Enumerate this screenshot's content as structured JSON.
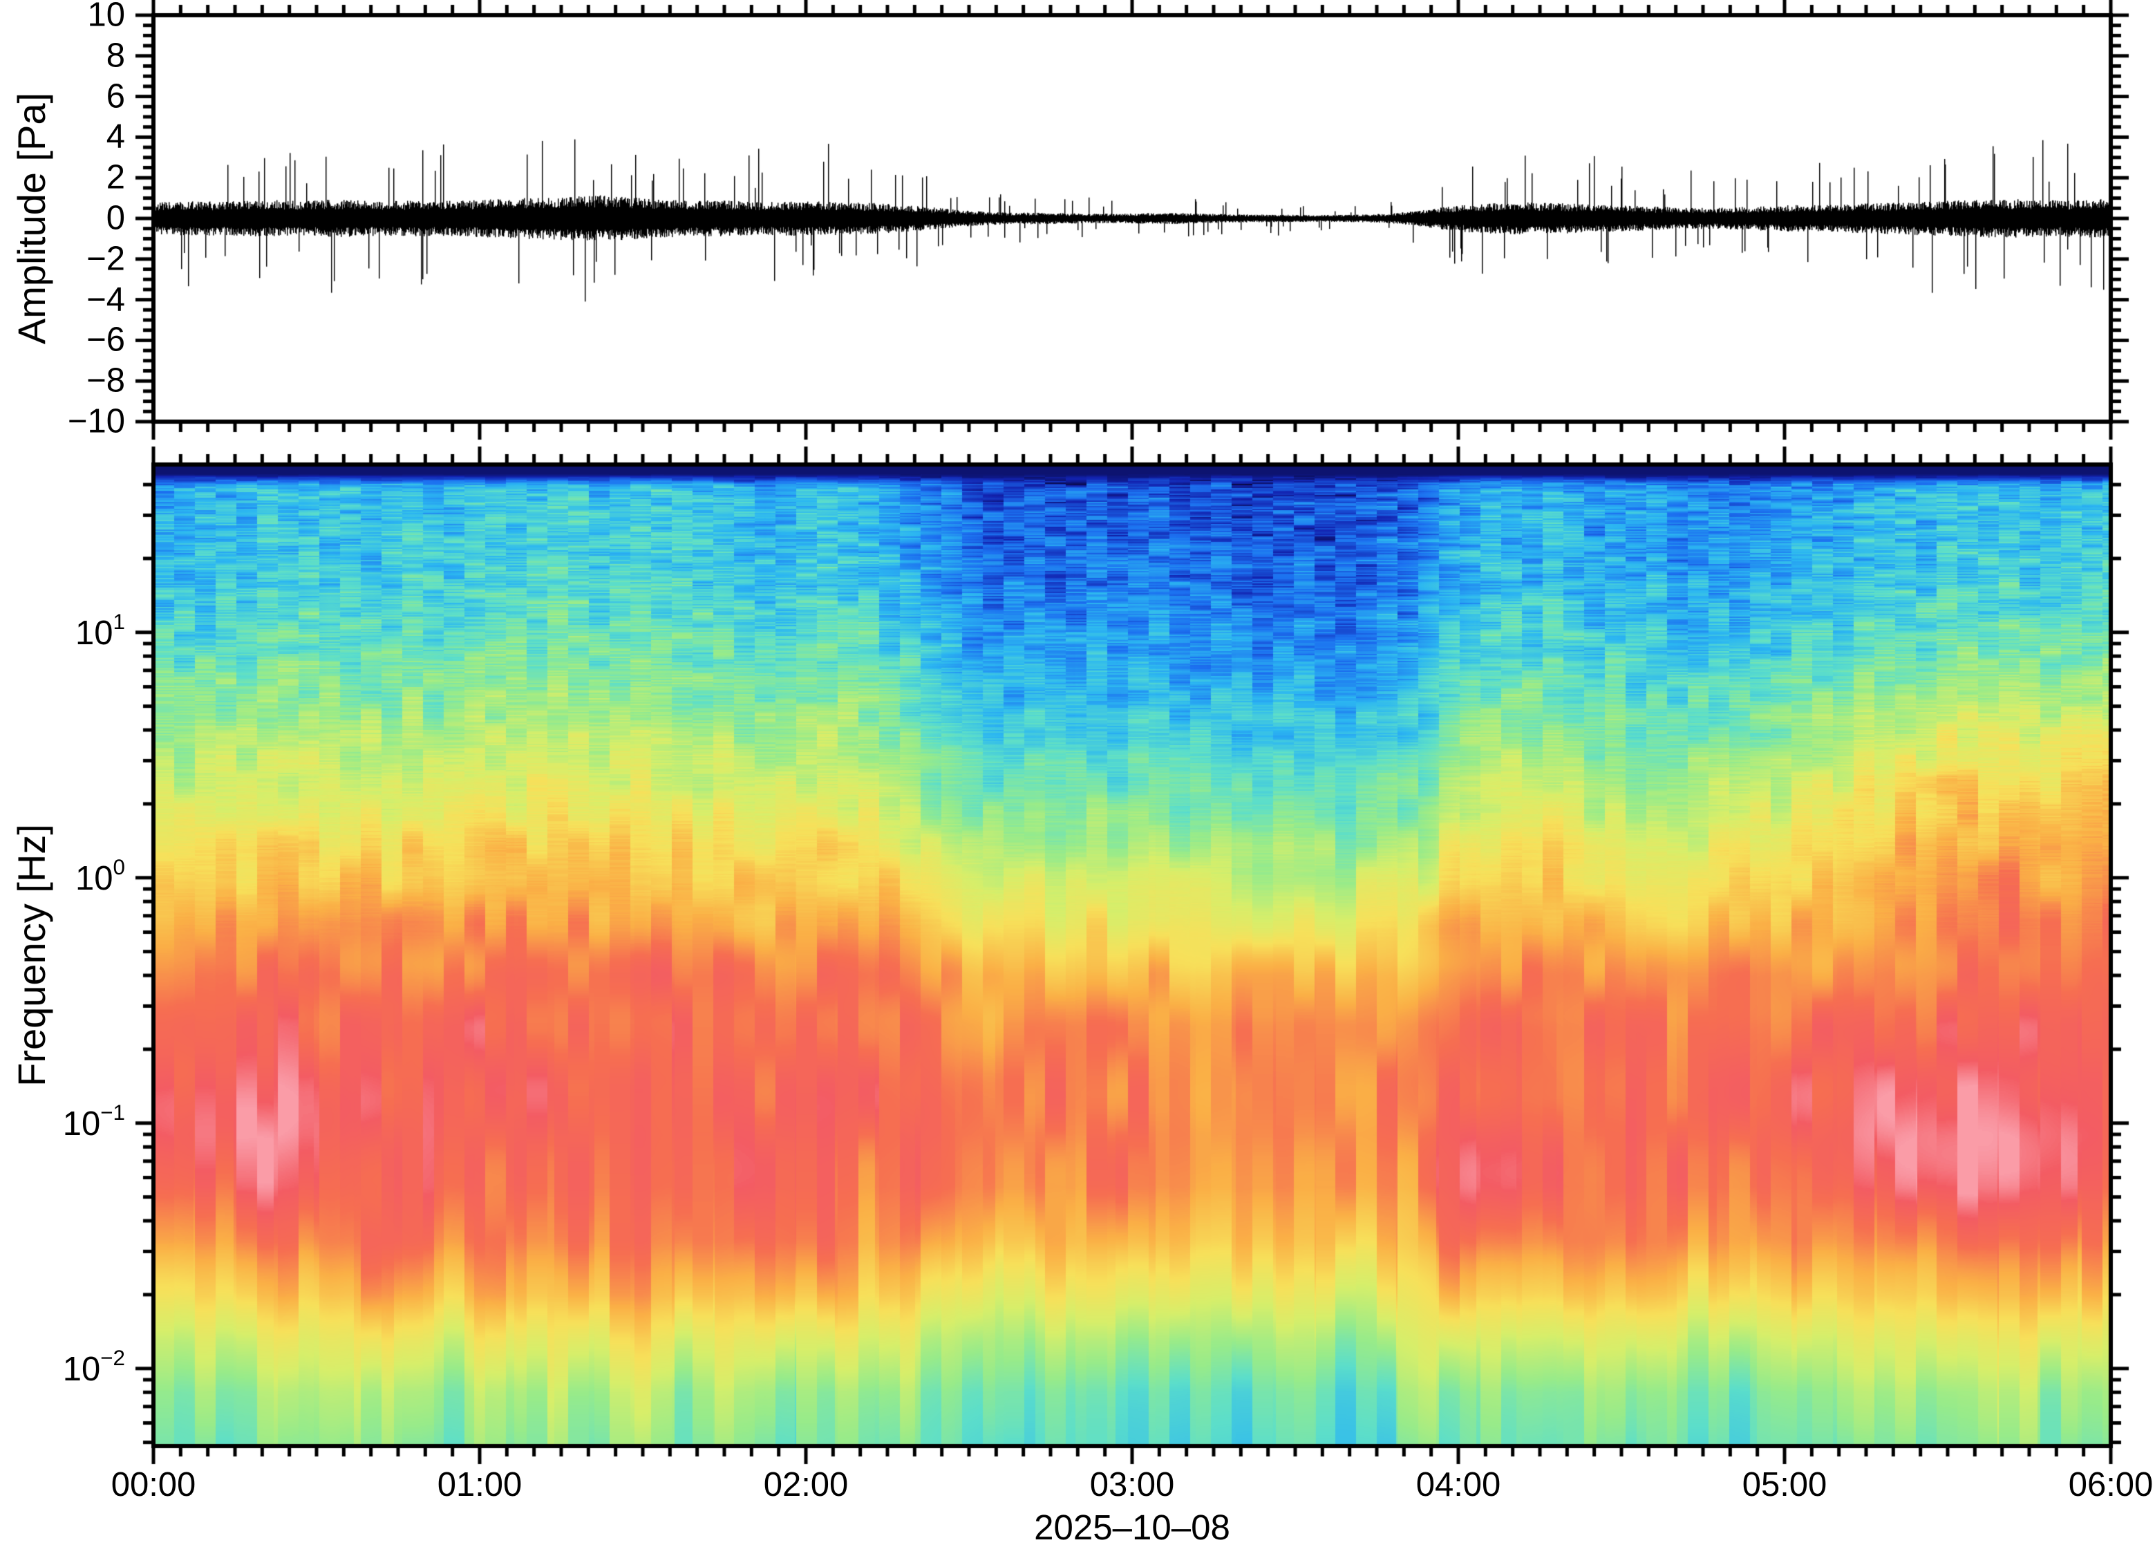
{
  "figure": {
    "background": "#ffffff",
    "frame_color": "#000000",
    "trace_color": "#000000"
  },
  "top_panel": {
    "ylabel": "Amplitude [Pa]",
    "ylim": [
      -10,
      10
    ],
    "ytick_values": [
      10,
      8,
      6,
      4,
      2,
      0,
      -2,
      -4,
      -6,
      -8,
      -10
    ],
    "ytick_labels": [
      "10",
      "8",
      "6",
      "4",
      "2",
      "0",
      "−2",
      "−4",
      "−6",
      "−8",
      "−10"
    ],
    "yminor_step": 0.5
  },
  "bottom_panel": {
    "ylabel": "Frequency [Hz]",
    "freq_range_hz": [
      0.00483,
      48.3
    ],
    "ytick_labels": [
      {
        "base": "10",
        "exp": "1",
        "value": 10
      },
      {
        "base": "10",
        "exp": "0",
        "value": 1
      },
      {
        "base": "10",
        "exp": "−1",
        "value": 0.1
      },
      {
        "base": "10",
        "exp": "−2",
        "value": 0.01
      }
    ]
  },
  "xaxis": {
    "tick_labels": [
      "00:00",
      "01:00",
      "02:00",
      "03:00",
      "04:00",
      "05:00",
      "06:00"
    ],
    "tick_hours": [
      0,
      1,
      2,
      3,
      4,
      5,
      6
    ],
    "minor_step_minutes": 5,
    "date_label": "2025–10–08"
  },
  "chart_data": [
    {
      "type": "line",
      "name": "pressure-waveform",
      "ylabel": "Amplitude [Pa]",
      "ylim": [
        -10,
        10
      ],
      "x_range_hours": [
        0,
        6
      ],
      "envelope_bin_minutes": 5,
      "envelope_pa": [
        0.85,
        0.9,
        0.88,
        0.92,
        0.95,
        0.9,
        1.0,
        0.95,
        0.9,
        0.95,
        0.9,
        0.95,
        1.0,
        1.05,
        1.1,
        1.15,
        1.2,
        1.1,
        1.0,
        0.95,
        0.95,
        0.9,
        0.85,
        0.9,
        0.9,
        0.85,
        0.8,
        0.72,
        0.6,
        0.45,
        0.35,
        0.3,
        0.3,
        0.28,
        0.25,
        0.25,
        0.28,
        0.3,
        0.25,
        0.22,
        0.2,
        0.2,
        0.18,
        0.18,
        0.2,
        0.25,
        0.4,
        0.6,
        0.75,
        0.8,
        0.85,
        0.8,
        0.75,
        0.7,
        0.65,
        0.6,
        0.55,
        0.55,
        0.6,
        0.65,
        0.7,
        0.7,
        0.75,
        0.8,
        0.85,
        0.9,
        0.95,
        1.0,
        1.0,
        0.95,
        0.95,
        1.0
      ],
      "max_peak_pa": 5.0,
      "color": "#000000"
    },
    {
      "type": "heatmap",
      "name": "spectrogram",
      "ylabel": "Frequency [Hz]",
      "x_range_hours": [
        0,
        6
      ],
      "freq_range_hz": [
        0.00483,
        48.3
      ],
      "profile_freq_hz": [
        0.005,
        0.008,
        0.013,
        0.02,
        0.033,
        0.055,
        0.09,
        0.15,
        0.25,
        0.4,
        0.65,
        1.1,
        1.8,
        3,
        5,
        8.5,
        14,
        23,
        38,
        44,
        48.3
      ],
      "profile_active": [
        0.45,
        0.5,
        0.62,
        0.76,
        0.86,
        0.9,
        0.91,
        0.91,
        0.9,
        0.87,
        0.81,
        0.74,
        0.65,
        0.57,
        0.49,
        0.42,
        0.36,
        0.33,
        0.31,
        0.18,
        0.03
      ],
      "profile_quiet": [
        0.36,
        0.4,
        0.5,
        0.62,
        0.74,
        0.82,
        0.84,
        0.83,
        0.8,
        0.73,
        0.62,
        0.5,
        0.4,
        0.33,
        0.26,
        0.2,
        0.15,
        0.12,
        0.1,
        0.07,
        0.02
      ],
      "hotspots": [
        {
          "t_hour": 0.2,
          "freq_hz": 0.09,
          "amp": 0.055,
          "sigma_t_hour": 0.3,
          "sigma_u": 0.045
        },
        {
          "t_hour": 5.5,
          "freq_hz": 0.1,
          "amp": 0.07,
          "sigma_t_hour": 0.35,
          "sigma_u": 0.05
        }
      ],
      "late_hf_boost": {
        "t_start_hour": 4.6,
        "ramp_hours": 0.9,
        "amp": 0.12,
        "freq_center_hz": 2.2,
        "sigma_u": 0.09
      },
      "dark_strip_above_hz": 40,
      "colormap_anchors": [
        [
          0.0,
          8,
          6,
          58
        ],
        [
          0.055,
          18,
          34,
          175
        ],
        [
          0.16,
          28,
          112,
          240
        ],
        [
          0.27,
          44,
          183,
          241
        ],
        [
          0.37,
          92,
          222,
          202
        ],
        [
          0.47,
          152,
          235,
          138
        ],
        [
          0.57,
          215,
          238,
          106
        ],
        [
          0.67,
          247,
          224,
          90
        ],
        [
          0.77,
          250,
          176,
          70
        ],
        [
          0.865,
          246,
          110,
          81
        ],
        [
          0.94,
          243,
          92,
          99
        ],
        [
          1.0,
          250,
          160,
          172
        ]
      ]
    }
  ]
}
